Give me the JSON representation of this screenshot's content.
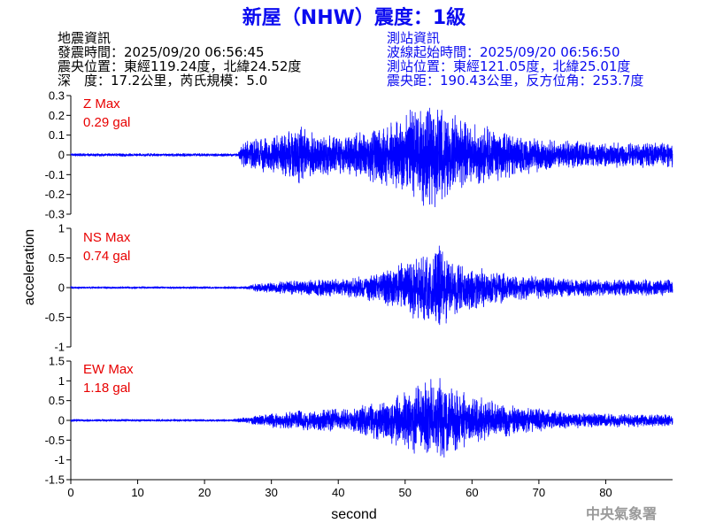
{
  "title": "新屋（NHW）震度：1級",
  "event_info": {
    "heading": "地震資訊",
    "origin_time": "發震時間：2025/09/20 06:56:45",
    "epicenter": "震央位置：東經119.24度，北緯24.52度",
    "depth_magnitude": "深　度：17.2公里，芮氏規模：5.0"
  },
  "station_info": {
    "heading": "測站資訊",
    "start_time": "波線起始時間：2025/09/20 06:56:50",
    "location": "測站位置：東經121.05度，北緯25.01度",
    "distance": "震央距：190.43公里，反方位角：253.7度"
  },
  "footer": "中央氣象署",
  "colors": {
    "title": "#0a0af0",
    "station_info": "#0a0af0",
    "max_label": "#e80000",
    "trace": "#0000ff",
    "footer": "#9a9a9a"
  },
  "chart_data": {
    "type": "line",
    "xlabel": "second",
    "ylabel": "acceleration",
    "xlim": [
      0,
      90
    ],
    "xticks": [
      0,
      10,
      20,
      30,
      40,
      50,
      60,
      70,
      80
    ],
    "grid": false,
    "panels": [
      {
        "max_title": "Z Max",
        "max_value": "0.29 gal",
        "ylim": [
          -0.3,
          0.3
        ],
        "yticks": [
          0.3,
          0.2,
          0.1,
          0,
          -0.1,
          -0.2,
          -0.3
        ],
        "amplitude_envelope": [
          [
            0,
            0.008
          ],
          [
            25,
            0.008
          ],
          [
            25.6,
            0.07
          ],
          [
            28,
            0.09
          ],
          [
            31,
            0.1
          ],
          [
            34,
            0.16
          ],
          [
            36,
            0.12
          ],
          [
            40,
            0.11
          ],
          [
            44,
            0.13
          ],
          [
            47,
            0.16
          ],
          [
            50,
            0.22
          ],
          [
            52,
            0.27
          ],
          [
            53.5,
            0.29
          ],
          [
            55,
            0.25
          ],
          [
            57,
            0.22
          ],
          [
            60,
            0.17
          ],
          [
            64,
            0.13
          ],
          [
            68,
            0.1
          ],
          [
            72,
            0.08
          ],
          [
            80,
            0.07
          ],
          [
            90,
            0.07
          ]
        ]
      },
      {
        "max_title": "NS Max",
        "max_value": "0.74 gal",
        "ylim": [
          -1,
          1
        ],
        "yticks": [
          1,
          0.5,
          0,
          -0.5,
          -1
        ],
        "amplitude_envelope": [
          [
            0,
            0.02
          ],
          [
            26,
            0.02
          ],
          [
            28,
            0.08
          ],
          [
            32,
            0.12
          ],
          [
            38,
            0.15
          ],
          [
            42,
            0.18
          ],
          [
            46,
            0.25
          ],
          [
            49,
            0.4
          ],
          [
            51,
            0.55
          ],
          [
            53,
            0.6
          ],
          [
            55,
            0.74
          ],
          [
            56.5,
            0.6
          ],
          [
            58,
            0.45
          ],
          [
            61,
            0.35
          ],
          [
            65,
            0.25
          ],
          [
            70,
            0.2
          ],
          [
            75,
            0.15
          ],
          [
            90,
            0.14
          ]
        ]
      },
      {
        "max_title": "EW Max",
        "max_value": "1.18 gal",
        "ylim": [
          -1.5,
          1.5
        ],
        "yticks": [
          1.5,
          1,
          0.5,
          0,
          -0.5,
          -1,
          -1.5
        ],
        "amplitude_envelope": [
          [
            0,
            0.03
          ],
          [
            24,
            0.03
          ],
          [
            27,
            0.1
          ],
          [
            30,
            0.2
          ],
          [
            36,
            0.28
          ],
          [
            42,
            0.35
          ],
          [
            46,
            0.5
          ],
          [
            49,
            0.7
          ],
          [
            51,
            0.85
          ],
          [
            53,
            1.0
          ],
          [
            55,
            1.18
          ],
          [
            56.5,
            1.0
          ],
          [
            58,
            0.8
          ],
          [
            61,
            0.6
          ],
          [
            65,
            0.45
          ],
          [
            70,
            0.3
          ],
          [
            75,
            0.2
          ],
          [
            90,
            0.15
          ]
        ]
      }
    ]
  }
}
